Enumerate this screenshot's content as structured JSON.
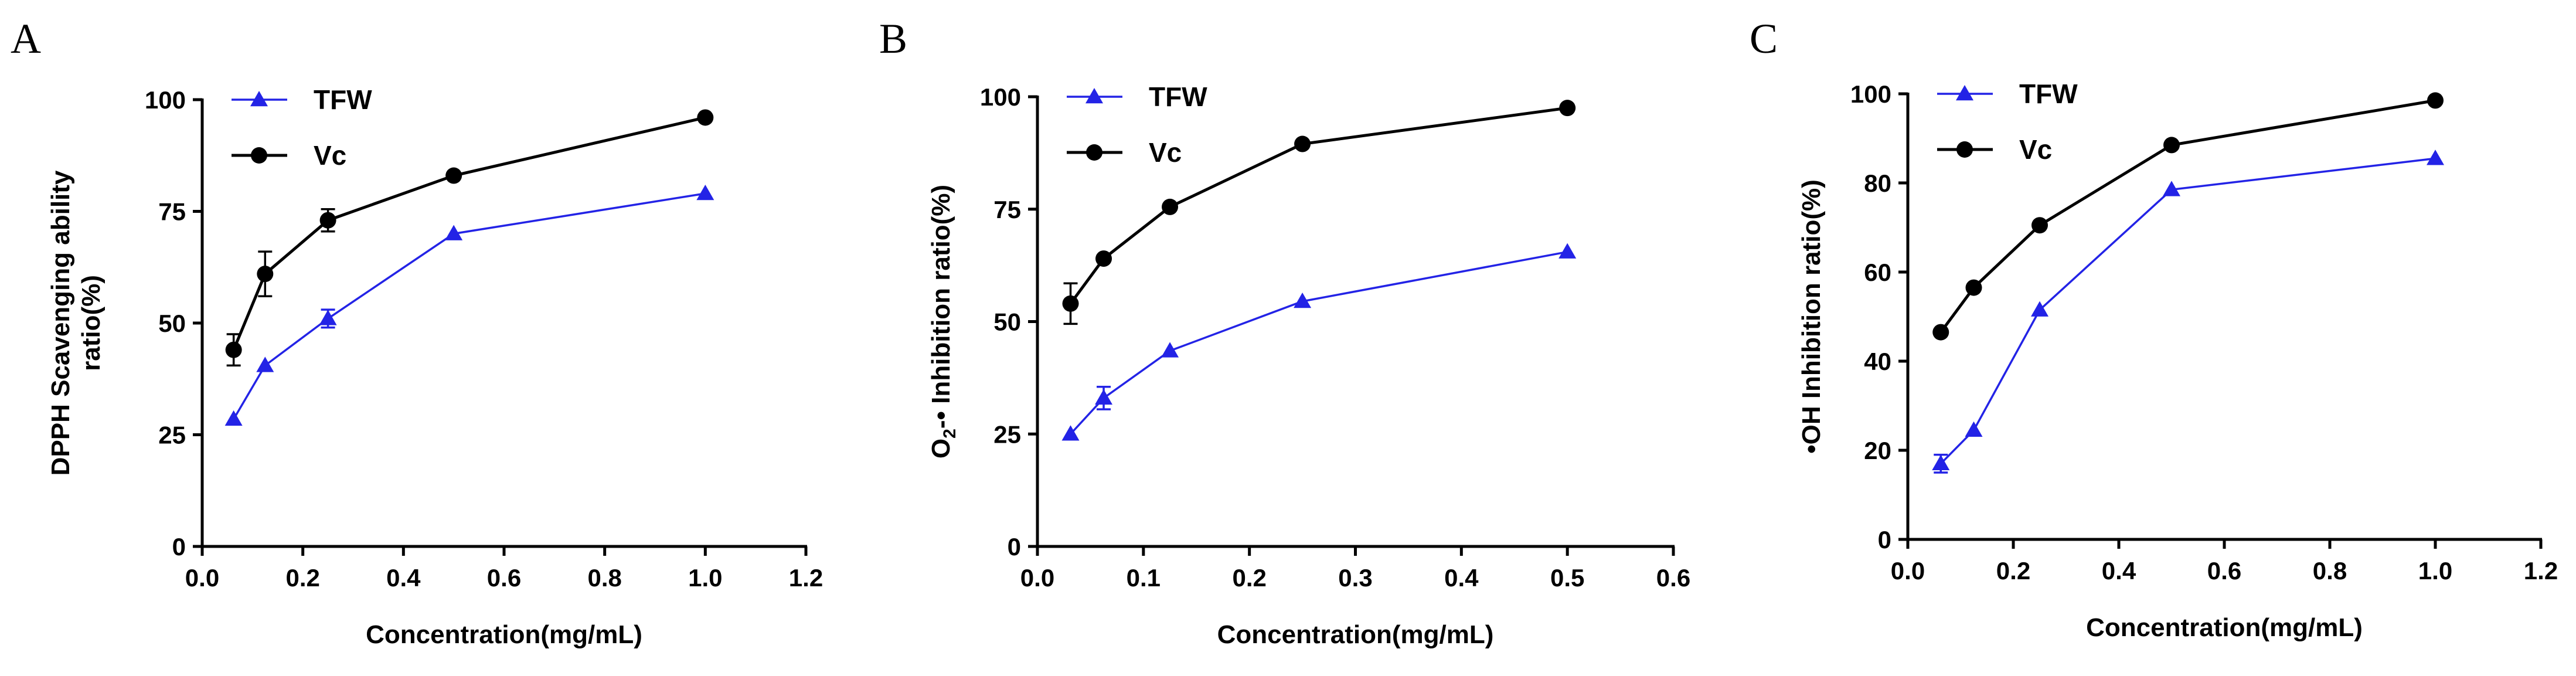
{
  "colors": {
    "tfw": "#2323e6",
    "vc": "#000000"
  },
  "chart_data": [
    {
      "panel": "A",
      "type": "line",
      "xlabel": "Concentration(mg/mL)",
      "ylabel_lines": [
        "DPPH Scavenging ability",
        "ratio(%)"
      ],
      "xlim": [
        0,
        1.2
      ],
      "ylim": [
        0,
        100
      ],
      "xticks": [
        "0.0",
        "0.2",
        "0.4",
        "0.6",
        "0.8",
        "1.0",
        "1.2"
      ],
      "yticks": [
        "0",
        "25",
        "50",
        "75",
        "100"
      ],
      "legend": [
        "TFW",
        "Vc"
      ],
      "legend_position": "top-left",
      "series": [
        {
          "name": "TFW",
          "marker": "triangle",
          "x": [
            0.0625,
            0.125,
            0.25,
            0.5,
            1.0
          ],
          "y": [
            28.5,
            40.5,
            51,
            70,
            79
          ],
          "err": [
            0,
            0,
            2,
            0,
            0
          ]
        },
        {
          "name": "Vc",
          "marker": "circle",
          "x": [
            0.0625,
            0.125,
            0.25,
            0.5,
            1.0
          ],
          "y": [
            44,
            61,
            73,
            83,
            96
          ],
          "err": [
            3.5,
            5,
            2.5,
            0,
            0
          ]
        }
      ]
    },
    {
      "panel": "B",
      "type": "line",
      "xlabel": "Concentration(mg/mL)",
      "ylabel_parts": [
        "O",
        "2",
        "-• Inhibition ratio(%)"
      ],
      "xlim": [
        0,
        0.6
      ],
      "ylim": [
        0,
        100
      ],
      "xticks": [
        "0.0",
        "0.1",
        "0.2",
        "0.3",
        "0.4",
        "0.5",
        "0.6"
      ],
      "yticks": [
        "0",
        "25",
        "50",
        "75",
        "100"
      ],
      "legend": [
        "TFW",
        "Vc"
      ],
      "legend_position": "top-left",
      "series": [
        {
          "name": "TFW",
          "marker": "triangle",
          "x": [
            0.03125,
            0.0625,
            0.125,
            0.25,
            0.5
          ],
          "y": [
            25,
            33,
            43.5,
            54.5,
            65.5
          ],
          "err": [
            0,
            2.5,
            0,
            0,
            0
          ]
        },
        {
          "name": "Vc",
          "marker": "circle",
          "x": [
            0.03125,
            0.0625,
            0.125,
            0.25,
            0.5
          ],
          "y": [
            54,
            64,
            75.5,
            89.5,
            97.5
          ],
          "err": [
            4.5,
            0,
            0,
            0,
            0
          ]
        }
      ]
    },
    {
      "panel": "C",
      "type": "line",
      "xlabel": "Concentration(mg/mL)",
      "ylabel": "•OH Inhibition ratio(%)",
      "xlim": [
        0,
        1.2
      ],
      "ylim": [
        0,
        100
      ],
      "xticks": [
        "0.0",
        "0.2",
        "0.4",
        "0.6",
        "0.8",
        "1.0",
        "1.2"
      ],
      "yticks": [
        "0",
        "20",
        "40",
        "60",
        "80",
        "100"
      ],
      "legend": [
        "TFW",
        "Vc"
      ],
      "legend_position": "top-left",
      "series": [
        {
          "name": "TFW",
          "marker": "triangle",
          "x": [
            0.0625,
            0.125,
            0.25,
            0.5,
            1.0
          ],
          "y": [
            17,
            24.5,
            51.5,
            78.5,
            85.5
          ],
          "err": [
            2,
            0,
            0,
            0,
            0
          ]
        },
        {
          "name": "Vc",
          "marker": "circle",
          "x": [
            0.0625,
            0.125,
            0.25,
            0.5,
            1.0
          ],
          "y": [
            46.5,
            56.5,
            70.5,
            88.5,
            98.5
          ],
          "err": [
            0,
            0,
            0,
            0,
            0
          ]
        }
      ]
    }
  ]
}
